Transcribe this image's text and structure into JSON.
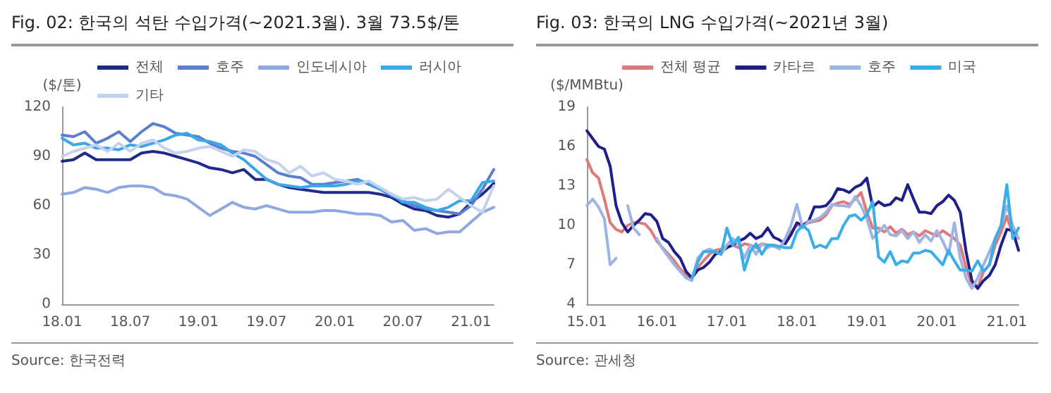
{
  "chart_data": [
    {
      "type": "line",
      "title": "Fig. 02: 한국의 석탄 수입가격(~2021.3월). 3월 73.5$/톤",
      "ylabel": "($/톤)",
      "annotations": [
        "Source: 한국전력"
      ],
      "categories": [
        "18.01",
        null,
        null,
        null,
        null,
        null,
        "18.07",
        null,
        null,
        null,
        null,
        null,
        "19.01",
        null,
        null,
        null,
        null,
        null,
        "19.07",
        null,
        null,
        null,
        null,
        null,
        "20.01",
        null,
        null,
        null,
        null,
        null,
        "20.07",
        null,
        null,
        null,
        null,
        null,
        "21.01",
        null,
        null
      ],
      "series": [
        {
          "name": "전체",
          "color": "#1f2a8a",
          "values": [
            87,
            88,
            92,
            88,
            88,
            88,
            88,
            92,
            93,
            92,
            90,
            88,
            86,
            83,
            82,
            80,
            82,
            76,
            76,
            73,
            71,
            70,
            69,
            68,
            68,
            68,
            68,
            68,
            67,
            65,
            61,
            58,
            57,
            54,
            53,
            55,
            62,
            67,
            73.5
          ]
        },
        {
          "name": "호주",
          "color": "#5a7fcf",
          "values": [
            103,
            102,
            105,
            98,
            101,
            105,
            99,
            105,
            110,
            108,
            104,
            103,
            102,
            98,
            95,
            93,
            92,
            90,
            85,
            80,
            78,
            77,
            73,
            73,
            74,
            75,
            76,
            73,
            70,
            66,
            63,
            60,
            58,
            57,
            56,
            55,
            60,
            70,
            82
          ]
        },
        {
          "name": "인도네시아",
          "color": "#8fa8e0",
          "values": [
            67,
            68,
            71,
            70,
            68,
            71,
            72,
            72,
            71,
            67,
            66,
            64,
            59,
            54,
            58,
            62,
            59,
            58,
            60,
            58,
            56,
            56,
            56,
            57,
            57,
            56,
            55,
            55,
            54,
            50,
            51,
            45,
            46,
            43,
            44,
            44,
            50,
            56,
            59
          ]
        },
        {
          "name": "러시아",
          "color": "#3aa8e8",
          "values": [
            101,
            97,
            98,
            95,
            95,
            94,
            97,
            96,
            98,
            100,
            103,
            104,
            100,
            99,
            97,
            92,
            88,
            82,
            76,
            73,
            72,
            71,
            72,
            72,
            72,
            73,
            75,
            74,
            70,
            67,
            62,
            62,
            59,
            57,
            59,
            63,
            63,
            74,
            75
          ]
        },
        {
          "name": "기타",
          "color": "#c5d2ee",
          "values": [
            90,
            93,
            95,
            97,
            93,
            98,
            93,
            98,
            100,
            95,
            92,
            93,
            95,
            96,
            93,
            90,
            94,
            93,
            88,
            86,
            80,
            84,
            78,
            80,
            76,
            75,
            73,
            75,
            71,
            67,
            64,
            65,
            63,
            64,
            70,
            65,
            60,
            56,
            72
          ]
        }
      ],
      "ylim": [
        0,
        120
      ],
      "yticks": [
        0,
        30,
        60,
        90,
        120
      ],
      "grid": false,
      "legend": "top",
      "marker": "none",
      "line_style": "solid"
    },
    {
      "type": "line",
      "title": "Fig. 03: 한국의 LNG 수입가격(~2021년 3월)",
      "ylabel": "($/MMBtu)",
      "annotations": [
        "Source: 관세청"
      ],
      "categories": [
        "15.01",
        null,
        null,
        null,
        null,
        null,
        null,
        null,
        null,
        null,
        null,
        null,
        "16.01",
        null,
        null,
        null,
        null,
        null,
        null,
        null,
        null,
        null,
        null,
        null,
        "17.01",
        null,
        null,
        null,
        null,
        null,
        null,
        null,
        null,
        null,
        null,
        null,
        "18.01",
        null,
        null,
        null,
        null,
        null,
        null,
        null,
        null,
        null,
        null,
        null,
        "19.01",
        null,
        null,
        null,
        null,
        null,
        null,
        null,
        null,
        null,
        null,
        null,
        "20.01",
        null,
        null,
        null,
        null,
        null,
        null,
        null,
        null,
        null,
        null,
        null,
        "21.01",
        null,
        null
      ],
      "series": [
        {
          "name": "전체 평균",
          "color": "#e07a7a",
          "values": [
            15.0,
            14.0,
            13.6,
            12.0,
            10.2,
            9.7,
            9.5,
            10.0,
            10.2,
            10.2,
            10.1,
            9.6,
            8.8,
            8.3,
            7.8,
            7.3,
            6.7,
            6.2,
            6.0,
            6.8,
            7.3,
            7.8,
            8.1,
            8.2,
            8.4,
            8.5,
            8.3,
            8.6,
            8.5,
            8.3,
            8.6,
            8.5,
            8.4,
            8.3,
            8.8,
            9.5,
            10.0,
            10.0,
            10.2,
            10.3,
            10.4,
            10.8,
            11.5,
            11.7,
            11.8,
            11.6,
            12.0,
            12.5,
            11.0,
            9.8,
            9.8,
            9.5,
            9.9,
            9.4,
            9.7,
            9.3,
            9.5,
            9.2,
            9.6,
            9.4,
            9.2,
            9.6,
            9.3,
            9.0,
            8.5,
            6.8,
            5.5,
            5.3,
            6.5,
            7.0,
            8.5,
            9.5,
            10.7,
            9.3,
            9.0
          ]
        },
        {
          "name": "카타르",
          "color": "#1f1f8a",
          "values": [
            17.2,
            16.6,
            16.0,
            15.8,
            14.5,
            11.5,
            10.2,
            9.5,
            10.0,
            10.4,
            10.9,
            10.8,
            10.3,
            9.0,
            8.7,
            8.0,
            7.5,
            6.5,
            6.0,
            6.6,
            6.8,
            7.2,
            7.8,
            8.0,
            8.3,
            8.5,
            8.8,
            9.0,
            9.4,
            9.0,
            9.2,
            9.8,
            9.1,
            8.9,
            8.6,
            9.3,
            10.2,
            10.0,
            10.3,
            11.4,
            11.4,
            11.5,
            12.0,
            12.8,
            12.7,
            12.5,
            12.9,
            13.1,
            13.6,
            11.4,
            11.8,
            11.5,
            11.6,
            12.1,
            11.9,
            13.1,
            12.0,
            11.0,
            11.0,
            10.9,
            11.5,
            11.8,
            12.3,
            11.9,
            11.0,
            8.0,
            5.8,
            5.2,
            5.8,
            6.2,
            7.0,
            8.5,
            9.7,
            9.6,
            8.1
          ]
        },
        {
          "name": "호주",
          "color": "#9db5e3",
          "values": [
            11.5,
            12.0,
            11.4,
            10.5,
            7.0,
            7.5,
            null,
            11.5,
            9.8,
            9.3,
            null,
            null,
            9.0,
            8.2,
            7.6,
            7.0,
            6.5,
            6.0,
            5.8,
            7.5,
            8.0,
            8.2,
            8.0,
            7.8,
            8.5,
            9.0,
            8.6,
            7.5,
            8.5,
            7.8,
            8.6,
            8.3,
            8.5,
            8.2,
            9.0,
            10.0,
            11.6,
            9.8,
            10.3,
            10.4,
            10.6,
            11.0,
            11.6,
            11.5,
            11.5,
            11.4,
            12.2,
            11.5,
            10.5,
            9.0,
            9.5,
            10.0,
            9.3,
            9.2,
            9.6,
            9.0,
            9.5,
            8.7,
            9.3,
            8.8,
            9.6,
            8.8,
            7.8,
            10.2,
            7.5,
            6.0,
            5.2,
            6.0,
            7.0,
            8.0,
            9.0,
            10.0,
            11.5,
            10.0,
            9.0
          ]
        },
        {
          "name": "미국",
          "color": "#3aaee8",
          "values": [
            null,
            null,
            null,
            null,
            null,
            null,
            null,
            null,
            null,
            null,
            null,
            null,
            null,
            null,
            null,
            null,
            null,
            null,
            6.0,
            7.2,
            8.0,
            8.0,
            8.0,
            7.8,
            9.8,
            8.5,
            9.1,
            6.6,
            8.0,
            8.6,
            7.8,
            8.5,
            8.5,
            8.4,
            8.3,
            8.3,
            9.5,
            10.0,
            9.6,
            8.3,
            8.5,
            8.3,
            9.0,
            9.0,
            10.0,
            10.7,
            10.8,
            10.4,
            10.8,
            11.8,
            7.6,
            7.2,
            8.0,
            7.0,
            7.3,
            7.2,
            7.9,
            7.9,
            8.1,
            8.0,
            7.5,
            7.0,
            8.1,
            7.3,
            6.6,
            6.6,
            6.5,
            7.3,
            6.5,
            7.0,
            9.0,
            10.0,
            13.1,
            9.0,
            9.8
          ]
        }
      ],
      "ylim": [
        4,
        19
      ],
      "yticks": [
        4,
        7,
        10,
        13,
        16,
        19
      ],
      "grid": false,
      "legend": "top",
      "marker": "none",
      "line_style": "solid"
    }
  ]
}
